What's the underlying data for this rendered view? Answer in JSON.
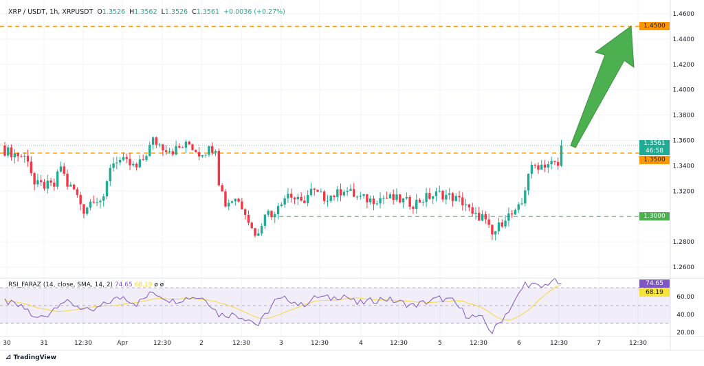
{
  "header": {
    "symbol": "XRP / USDT, 1h, XRPUSDT",
    "o_label": "O",
    "o": "1.3526",
    "h_label": "H",
    "h": "1.3562",
    "l_label": "L",
    "l": "1.3526",
    "c_label": "C",
    "c": "1.3561",
    "change": "+0.0036 (+0.27%)"
  },
  "rsi_header": {
    "name": "RSI_FARAZ (14, close, SMA, 14, 2)",
    "rsi": "74.65",
    "sma": "68.19",
    "extra1": "ø",
    "extra2": "ø"
  },
  "tags": {
    "level_145": "1.4500",
    "last_price": "1.3561",
    "countdown": "46:58",
    "level_135": "1.3500",
    "level_130": "1.3000",
    "rsi_value": "74.65",
    "rsi_sma": "68.19"
  },
  "brand": "TradingView",
  "colors": {
    "up": "#22ab94",
    "down": "#f23645",
    "orange": "#ff9800",
    "green_line": "#4caf50",
    "rsi": "#7e57c2",
    "sma": "#f5d73a",
    "arrow": "#4caf50"
  },
  "chart_data": {
    "type": "candlestick",
    "title": "XRP / USDT, 1h",
    "y_ticks": [
      "1.4600",
      "1.4400",
      "1.4200",
      "1.4000",
      "1.3800",
      "1.3600",
      "1.3400",
      "1.3200",
      "1.2800",
      "1.2600"
    ],
    "ylim": [
      1.26,
      1.46
    ],
    "x_ticks": [
      "30",
      "31",
      "12:30",
      "Apr",
      "12:30",
      "2",
      "12:30",
      "3",
      "12:30",
      "4",
      "12:30",
      "5",
      "12:30",
      "6",
      "12:30",
      "7",
      "12:30"
    ],
    "horizontal_levels": [
      1.45,
      1.35,
      1.3
    ],
    "close_keypoints_by_hour": [
      [
        0,
        1.352
      ],
      [
        7,
        1.346
      ],
      [
        9,
        1.325
      ],
      [
        15,
        1.324
      ],
      [
        17,
        1.34
      ],
      [
        19,
        1.325
      ],
      [
        21,
        1.321
      ],
      [
        24,
        1.305
      ],
      [
        27,
        1.315
      ],
      [
        30,
        1.312
      ],
      [
        32,
        1.34
      ],
      [
        34,
        1.345
      ],
      [
        37,
        1.342
      ],
      [
        40,
        1.338
      ],
      [
        42,
        1.345
      ],
      [
        45,
        1.36
      ],
      [
        48,
        1.355
      ],
      [
        51,
        1.352
      ],
      [
        54,
        1.355
      ],
      [
        56,
        1.357
      ],
      [
        59,
        1.35
      ],
      [
        61,
        1.352
      ],
      [
        64,
        1.355
      ],
      [
        65,
        1.328
      ],
      [
        67,
        1.31
      ],
      [
        70,
        1.315
      ],
      [
        73,
        1.305
      ],
      [
        75,
        1.29
      ],
      [
        77,
        1.285
      ],
      [
        79,
        1.305
      ],
      [
        81,
        1.3
      ],
      [
        83,
        1.31
      ],
      [
        86,
        1.318
      ],
      [
        90,
        1.31
      ],
      [
        93,
        1.32
      ],
      [
        97,
        1.315
      ],
      [
        101,
        1.318
      ],
      [
        103,
        1.322
      ],
      [
        107,
        1.315
      ],
      [
        111,
        1.313
      ],
      [
        115,
        1.315
      ],
      [
        120,
        1.313
      ],
      [
        124,
        1.31
      ],
      [
        128,
        1.315
      ],
      [
        132,
        1.318
      ],
      [
        136,
        1.315
      ],
      [
        140,
        1.31
      ],
      [
        142,
        1.3
      ],
      [
        145,
        1.3
      ],
      [
        148,
        1.285
      ],
      [
        150,
        1.292
      ],
      [
        152,
        1.3
      ],
      [
        155,
        1.302
      ],
      [
        157,
        1.31
      ],
      [
        159,
        1.335
      ],
      [
        161,
        1.34
      ],
      [
        166,
        1.342
      ],
      [
        168,
        1.34
      ],
      [
        169,
        1.3561
      ]
    ],
    "rsi": {
      "name": "RSI_FARAZ",
      "ylim": [
        10,
        85
      ],
      "y_ticks": [
        "60.00",
        "40.00",
        "20.00"
      ],
      "bands": [
        70,
        50,
        30
      ],
      "keypoints_by_hour": [
        [
          0,
          55
        ],
        [
          7,
          45
        ],
        [
          9,
          35
        ],
        [
          13,
          40
        ],
        [
          17,
          55
        ],
        [
          22,
          50
        ],
        [
          26,
          42
        ],
        [
          32,
          55
        ],
        [
          36,
          60
        ],
        [
          40,
          52
        ],
        [
          45,
          65
        ],
        [
          51,
          55
        ],
        [
          57,
          60
        ],
        [
          61,
          58
        ],
        [
          65,
          40
        ],
        [
          70,
          40
        ],
        [
          74,
          35
        ],
        [
          77,
          28
        ],
        [
          82,
          55
        ],
        [
          86,
          58
        ],
        [
          90,
          50
        ],
        [
          95,
          60
        ],
        [
          99,
          58
        ],
        [
          103,
          62
        ],
        [
          107,
          52
        ],
        [
          115,
          58
        ],
        [
          124,
          50
        ],
        [
          132,
          58
        ],
        [
          136,
          55
        ],
        [
          140,
          40
        ],
        [
          145,
          35
        ],
        [
          148,
          20
        ],
        [
          151,
          35
        ],
        [
          155,
          55
        ],
        [
          158,
          75
        ],
        [
          163,
          70
        ],
        [
          166,
          78
        ],
        [
          169,
          74.65
        ]
      ],
      "last": 74.65,
      "sma_last": 68.19
    }
  }
}
